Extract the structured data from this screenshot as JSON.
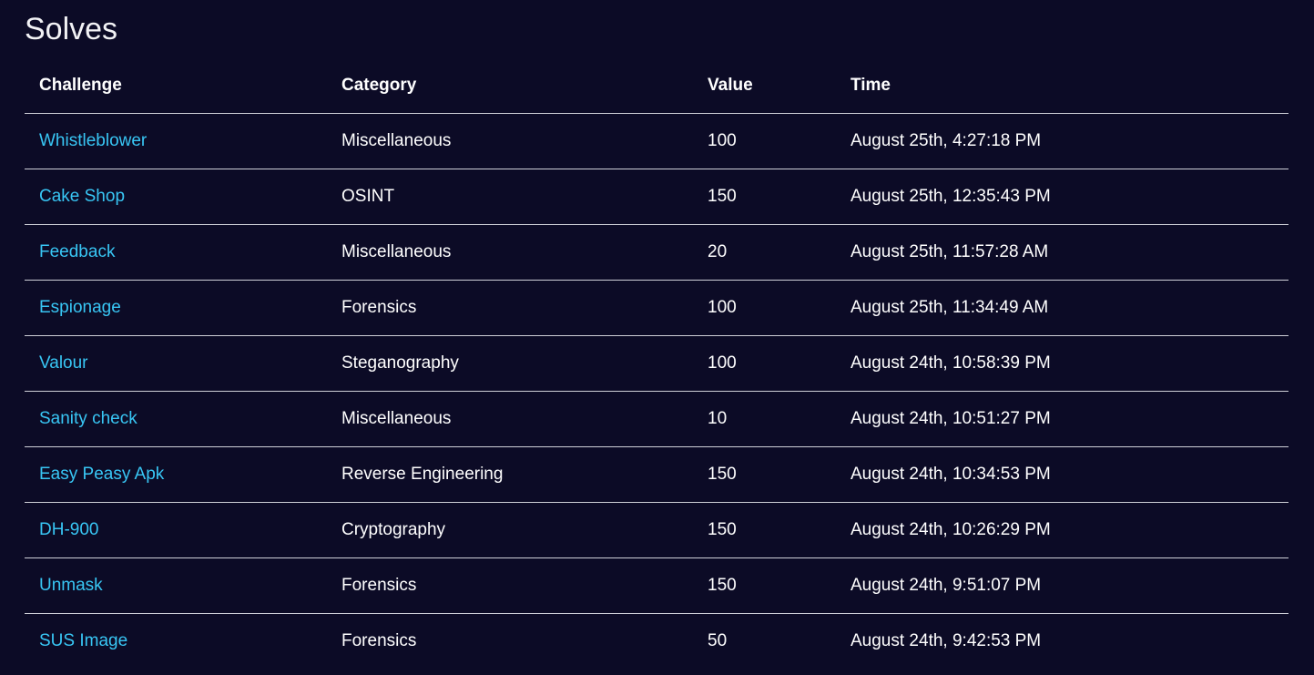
{
  "page": {
    "title": "Solves"
  },
  "table": {
    "headers": {
      "challenge": "Challenge",
      "category": "Category",
      "value": "Value",
      "time": "Time"
    },
    "rows": [
      {
        "challenge": "Whistleblower",
        "category": "Miscellaneous",
        "value": "100",
        "time": "August 25th, 4:27:18 PM"
      },
      {
        "challenge": "Cake Shop",
        "category": "OSINT",
        "value": "150",
        "time": "August 25th, 12:35:43 PM"
      },
      {
        "challenge": "Feedback",
        "category": "Miscellaneous",
        "value": "20",
        "time": "August 25th, 11:57:28 AM"
      },
      {
        "challenge": "Espionage",
        "category": "Forensics",
        "value": "100",
        "time": "August 25th, 11:34:49 AM"
      },
      {
        "challenge": "Valour",
        "category": "Steganography",
        "value": "100",
        "time": "August 24th, 10:58:39 PM"
      },
      {
        "challenge": "Sanity check",
        "category": "Miscellaneous",
        "value": "10",
        "time": "August 24th, 10:51:27 PM"
      },
      {
        "challenge": "Easy Peasy Apk",
        "category": "Reverse Engineering",
        "value": "150",
        "time": "August 24th, 10:34:53 PM"
      },
      {
        "challenge": "DH-900",
        "category": "Cryptography",
        "value": "150",
        "time": "August 24th, 10:26:29 PM"
      },
      {
        "challenge": "Unmask",
        "category": "Forensics",
        "value": "150",
        "time": "August 24th, 9:51:07 PM"
      },
      {
        "challenge": "SUS Image",
        "category": "Forensics",
        "value": "50",
        "time": "August 24th, 9:42:53 PM"
      }
    ]
  },
  "colors": {
    "background": "#0c0b26",
    "link": "#38c6f4",
    "text": "#ffffff",
    "divider": "#cfd0d8"
  }
}
